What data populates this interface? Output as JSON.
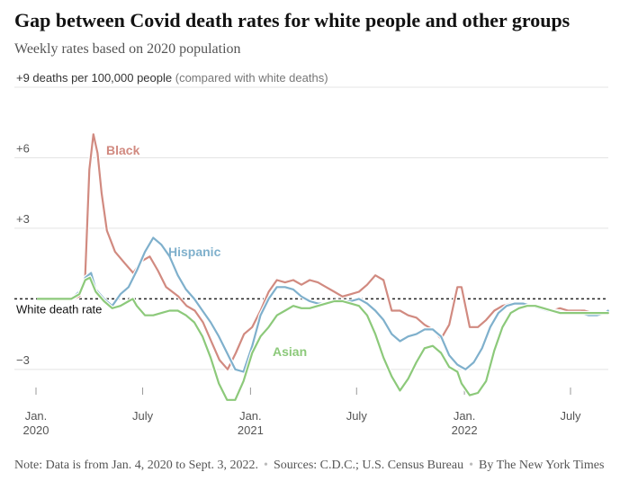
{
  "header": {
    "title": "Gap between Covid death rates for white people and other groups",
    "subtitle": "Weekly rates based on 2020 population"
  },
  "footer": {
    "note": "Note: Data is from Jan. 4, 2020 to Sept. 3, 2022.",
    "sources": "Sources: C.D.C.; U.S. Census Bureau",
    "credit": "By The New York Times"
  },
  "colors": {
    "black": "#d18a80",
    "hispanic": "#7fb0cc",
    "asian": "#8cc97a",
    "grid": "#e4e4e4",
    "axis_text": "#555555"
  },
  "chart_data": {
    "type": "line",
    "ylim": [
      -4,
      9
    ],
    "y_ticks": [
      {
        "value": 9,
        "label": "+9 deaths per 100,000 people",
        "suffix": " (compared with white deaths)"
      },
      {
        "value": 6,
        "label": "+6"
      },
      {
        "value": 3,
        "label": "+3"
      },
      {
        "value": -3,
        "label": "−3"
      }
    ],
    "x_ticks": [
      {
        "x": "2020-01-01",
        "label": "Jan.",
        "sublabel": "2020"
      },
      {
        "x": "2020-07-01",
        "label": "July",
        "sublabel": ""
      },
      {
        "x": "2021-01-01",
        "label": "Jan.",
        "sublabel": "2021"
      },
      {
        "x": "2021-07-01",
        "label": "July",
        "sublabel": ""
      },
      {
        "x": "2022-01-01",
        "label": "Jan.",
        "sublabel": "2022"
      },
      {
        "x": "2022-07-01",
        "label": "July",
        "sublabel": ""
      }
    ],
    "xlim": [
      "2020-01-04",
      "2022-09-03"
    ],
    "baseline": {
      "value": 0,
      "label": "White death rate"
    },
    "series": [
      {
        "name": "Black",
        "color_key": "black",
        "points": [
          [
            "2020-01-04",
            0
          ],
          [
            "2020-03-01",
            0
          ],
          [
            "2020-03-15",
            0.1
          ],
          [
            "2020-03-25",
            1.0
          ],
          [
            "2020-04-01",
            5.5
          ],
          [
            "2020-04-08",
            7.0
          ],
          [
            "2020-04-15",
            6.2
          ],
          [
            "2020-04-22",
            4.5
          ],
          [
            "2020-05-01",
            2.9
          ],
          [
            "2020-05-15",
            2.0
          ],
          [
            "2020-06-01",
            1.5
          ],
          [
            "2020-06-15",
            1.1
          ],
          [
            "2020-06-29",
            1.6
          ],
          [
            "2020-07-13",
            1.8
          ],
          [
            "2020-07-27",
            1.2
          ],
          [
            "2020-08-10",
            0.5
          ],
          [
            "2020-08-31",
            0.1
          ],
          [
            "2020-09-14",
            -0.3
          ],
          [
            "2020-09-28",
            -0.5
          ],
          [
            "2020-10-12",
            -1.0
          ],
          [
            "2020-10-26",
            -1.8
          ],
          [
            "2020-11-09",
            -2.6
          ],
          [
            "2020-11-23",
            -3.0
          ],
          [
            "2020-12-07",
            -2.3
          ],
          [
            "2020-12-21",
            -1.5
          ],
          [
            "2021-01-04",
            -1.2
          ],
          [
            "2021-01-18",
            -0.5
          ],
          [
            "2021-02-01",
            0.3
          ],
          [
            "2021-02-15",
            0.8
          ],
          [
            "2021-03-01",
            0.7
          ],
          [
            "2021-03-15",
            0.8
          ],
          [
            "2021-03-29",
            0.6
          ],
          [
            "2021-04-12",
            0.8
          ],
          [
            "2021-04-26",
            0.7
          ],
          [
            "2021-05-10",
            0.5
          ],
          [
            "2021-05-24",
            0.3
          ],
          [
            "2021-06-07",
            0.1
          ],
          [
            "2021-06-21",
            0.2
          ],
          [
            "2021-07-05",
            0.3
          ],
          [
            "2021-07-19",
            0.6
          ],
          [
            "2021-08-02",
            1.0
          ],
          [
            "2021-08-16",
            0.8
          ],
          [
            "2021-08-30",
            -0.5
          ],
          [
            "2021-09-13",
            -0.5
          ],
          [
            "2021-09-27",
            -0.7
          ],
          [
            "2021-10-11",
            -0.8
          ],
          [
            "2021-10-25",
            -1.1
          ],
          [
            "2021-11-08",
            -1.3
          ],
          [
            "2021-11-22",
            -1.7
          ],
          [
            "2021-12-06",
            -1.1
          ],
          [
            "2021-12-20",
            0.5
          ],
          [
            "2021-12-27",
            0.5
          ],
          [
            "2022-01-10",
            -1.2
          ],
          [
            "2022-01-24",
            -1.2
          ],
          [
            "2022-02-07",
            -0.9
          ],
          [
            "2022-02-21",
            -0.5
          ],
          [
            "2022-03-07",
            -0.3
          ],
          [
            "2022-03-21",
            -0.2
          ],
          [
            "2022-04-04",
            -0.2
          ],
          [
            "2022-04-18",
            -0.3
          ],
          [
            "2022-05-02",
            -0.3
          ],
          [
            "2022-05-16",
            -0.4
          ],
          [
            "2022-05-30",
            -0.5
          ],
          [
            "2022-06-13",
            -0.4
          ],
          [
            "2022-06-27",
            -0.5
          ],
          [
            "2022-07-11",
            -0.5
          ],
          [
            "2022-07-25",
            -0.5
          ],
          [
            "2022-08-08",
            -0.6
          ],
          [
            "2022-08-22",
            -0.6
          ],
          [
            "2022-09-03",
            -0.6
          ]
        ]
      },
      {
        "name": "Hispanic",
        "color_key": "hispanic",
        "points": [
          [
            "2020-01-04",
            0
          ],
          [
            "2020-03-01",
            0
          ],
          [
            "2020-03-15",
            0.3
          ],
          [
            "2020-03-25",
            0.9
          ],
          [
            "2020-04-04",
            1.1
          ],
          [
            "2020-04-12",
            0.4
          ],
          [
            "2020-04-26",
            0
          ],
          [
            "2020-05-10",
            -0.3
          ],
          [
            "2020-05-24",
            0.2
          ],
          [
            "2020-06-07",
            0.5
          ],
          [
            "2020-06-21",
            1.2
          ],
          [
            "2020-07-05",
            2.0
          ],
          [
            "2020-07-19",
            2.6
          ],
          [
            "2020-08-02",
            2.3
          ],
          [
            "2020-08-16",
            1.8
          ],
          [
            "2020-08-30",
            1.0
          ],
          [
            "2020-09-13",
            0.4
          ],
          [
            "2020-09-27",
            0
          ],
          [
            "2020-10-11",
            -0.5
          ],
          [
            "2020-10-25",
            -1.0
          ],
          [
            "2020-11-08",
            -1.6
          ],
          [
            "2020-11-22",
            -2.3
          ],
          [
            "2020-12-06",
            -3.0
          ],
          [
            "2020-12-20",
            -3.1
          ],
          [
            "2021-01-04",
            -2.0
          ],
          [
            "2021-01-18",
            -0.7
          ],
          [
            "2021-02-01",
            0
          ],
          [
            "2021-02-15",
            0.5
          ],
          [
            "2021-03-01",
            0.5
          ],
          [
            "2021-03-15",
            0.4
          ],
          [
            "2021-03-29",
            0.1
          ],
          [
            "2021-04-12",
            -0.1
          ],
          [
            "2021-04-26",
            -0.2
          ],
          [
            "2021-05-10",
            -0.2
          ],
          [
            "2021-05-24",
            -0.1
          ],
          [
            "2021-06-07",
            -0.1
          ],
          [
            "2021-06-21",
            -0.1
          ],
          [
            "2021-07-05",
            0
          ],
          [
            "2021-07-19",
            -0.2
          ],
          [
            "2021-08-02",
            -0.5
          ],
          [
            "2021-08-16",
            -0.9
          ],
          [
            "2021-08-30",
            -1.5
          ],
          [
            "2021-09-13",
            -1.8
          ],
          [
            "2021-09-27",
            -1.6
          ],
          [
            "2021-10-11",
            -1.5
          ],
          [
            "2021-10-25",
            -1.3
          ],
          [
            "2021-11-08",
            -1.3
          ],
          [
            "2021-11-22",
            -1.6
          ],
          [
            "2021-12-06",
            -2.4
          ],
          [
            "2021-12-20",
            -2.8
          ],
          [
            "2022-01-03",
            -3.0
          ],
          [
            "2022-01-17",
            -2.7
          ],
          [
            "2022-01-31",
            -2.1
          ],
          [
            "2022-02-14",
            -1.2
          ],
          [
            "2022-02-28",
            -0.6
          ],
          [
            "2022-03-14",
            -0.3
          ],
          [
            "2022-03-28",
            -0.2
          ],
          [
            "2022-04-11",
            -0.2
          ],
          [
            "2022-04-25",
            -0.3
          ],
          [
            "2022-05-09",
            -0.4
          ],
          [
            "2022-05-23",
            -0.5
          ],
          [
            "2022-06-06",
            -0.5
          ],
          [
            "2022-06-20",
            -0.6
          ],
          [
            "2022-07-04",
            -0.6
          ],
          [
            "2022-07-18",
            -0.6
          ],
          [
            "2022-08-01",
            -0.7
          ],
          [
            "2022-08-15",
            -0.7
          ],
          [
            "2022-08-29",
            -0.6
          ],
          [
            "2022-09-03",
            -0.5
          ]
        ]
      },
      {
        "name": "Asian",
        "color_key": "asian",
        "points": [
          [
            "2020-01-04",
            0
          ],
          [
            "2020-03-01",
            0
          ],
          [
            "2020-03-15",
            0.2
          ],
          [
            "2020-03-25",
            0.8
          ],
          [
            "2020-04-02",
            0.9
          ],
          [
            "2020-04-12",
            0.3
          ],
          [
            "2020-04-26",
            -0.1
          ],
          [
            "2020-05-10",
            -0.4
          ],
          [
            "2020-05-24",
            -0.3
          ],
          [
            "2020-06-07",
            -0.1
          ],
          [
            "2020-06-14",
            0
          ],
          [
            "2020-06-21",
            -0.3
          ],
          [
            "2020-07-05",
            -0.7
          ],
          [
            "2020-07-19",
            -0.7
          ],
          [
            "2020-08-02",
            -0.6
          ],
          [
            "2020-08-16",
            -0.5
          ],
          [
            "2020-08-30",
            -0.5
          ],
          [
            "2020-09-13",
            -0.7
          ],
          [
            "2020-09-27",
            -1.0
          ],
          [
            "2020-10-11",
            -1.6
          ],
          [
            "2020-10-25",
            -2.5
          ],
          [
            "2020-11-08",
            -3.6
          ],
          [
            "2020-11-22",
            -4.3
          ],
          [
            "2020-12-06",
            -4.3
          ],
          [
            "2020-12-20",
            -3.5
          ],
          [
            "2021-01-04",
            -2.3
          ],
          [
            "2021-01-18",
            -1.6
          ],
          [
            "2021-02-01",
            -1.2
          ],
          [
            "2021-02-15",
            -0.7
          ],
          [
            "2021-03-01",
            -0.5
          ],
          [
            "2021-03-15",
            -0.3
          ],
          [
            "2021-03-29",
            -0.4
          ],
          [
            "2021-04-12",
            -0.4
          ],
          [
            "2021-04-26",
            -0.3
          ],
          [
            "2021-05-10",
            -0.2
          ],
          [
            "2021-05-24",
            -0.1
          ],
          [
            "2021-06-07",
            -0.1
          ],
          [
            "2021-06-21",
            -0.2
          ],
          [
            "2021-07-05",
            -0.3
          ],
          [
            "2021-07-19",
            -0.7
          ],
          [
            "2021-08-02",
            -1.5
          ],
          [
            "2021-08-16",
            -2.5
          ],
          [
            "2021-08-30",
            -3.3
          ],
          [
            "2021-09-13",
            -3.9
          ],
          [
            "2021-09-27",
            -3.4
          ],
          [
            "2021-10-11",
            -2.7
          ],
          [
            "2021-10-25",
            -2.1
          ],
          [
            "2021-11-08",
            -2.0
          ],
          [
            "2021-11-22",
            -2.3
          ],
          [
            "2021-12-06",
            -2.9
          ],
          [
            "2021-12-20",
            -3.1
          ],
          [
            "2021-12-27",
            -3.6
          ],
          [
            "2022-01-10",
            -4.1
          ],
          [
            "2022-01-24",
            -4.0
          ],
          [
            "2022-02-07",
            -3.5
          ],
          [
            "2022-02-21",
            -2.2
          ],
          [
            "2022-03-07",
            -1.2
          ],
          [
            "2022-03-21",
            -0.6
          ],
          [
            "2022-04-04",
            -0.4
          ],
          [
            "2022-04-18",
            -0.3
          ],
          [
            "2022-05-02",
            -0.3
          ],
          [
            "2022-05-16",
            -0.4
          ],
          [
            "2022-05-30",
            -0.5
          ],
          [
            "2022-06-13",
            -0.6
          ],
          [
            "2022-06-27",
            -0.6
          ],
          [
            "2022-07-11",
            -0.6
          ],
          [
            "2022-07-25",
            -0.6
          ],
          [
            "2022-08-08",
            -0.6
          ],
          [
            "2022-08-22",
            -0.6
          ],
          [
            "2022-09-03",
            -0.6
          ]
        ]
      }
    ]
  }
}
